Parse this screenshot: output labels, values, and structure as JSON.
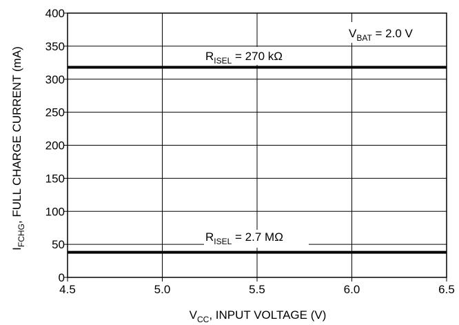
{
  "chart_data": {
    "type": "line",
    "xlim": [
      4.5,
      6.5
    ],
    "ylim": [
      0,
      400
    ],
    "x_ticks": [
      "4.5",
      "5.0",
      "5.5",
      "6.0",
      "6.5"
    ],
    "x_tick_values": [
      4.5,
      5.0,
      5.5,
      6.0,
      6.5
    ],
    "y_ticks": [
      "0",
      "50",
      "100",
      "150",
      "200",
      "250",
      "300",
      "350",
      "400"
    ],
    "y_tick_values": [
      0,
      50,
      100,
      150,
      200,
      250,
      300,
      350,
      400
    ],
    "grid": true,
    "xlabel": {
      "main": "V",
      "sub": "CC",
      "rest": ", INPUT VOLTAGE (V)"
    },
    "ylabel": {
      "main": "I",
      "sub": "FCHG",
      "rest": ", FULL CHARGE CURRENT (mA)"
    },
    "series": [
      {
        "name": "R_ISEL = 270 kΩ",
        "x": [
          4.5,
          6.5
        ],
        "y": [
          318,
          318
        ]
      },
      {
        "name": "R_ISEL = 2.7 MΩ",
        "x": [
          4.5,
          6.5
        ],
        "y": [
          38,
          38
        ]
      }
    ],
    "annotations": [
      {
        "main": "V",
        "sub": "BAT",
        "rest": " = 2.0 V"
      },
      {
        "main": "R",
        "sub": "ISEL",
        "rest": " = 270 kΩ"
      },
      {
        "main": "R",
        "sub": "ISEL",
        "rest": " = 2.7 MΩ"
      }
    ]
  }
}
